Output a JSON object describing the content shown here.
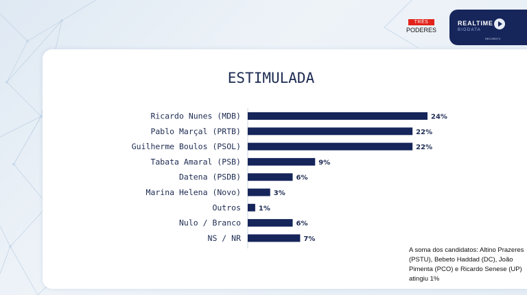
{
  "brand": {
    "tres_top": "TRÊS",
    "tres_bottom": "PODERES",
    "realtime_line1": "REALTIME",
    "realtime_line2": "BIGDATA",
    "realtime_line3": "RECORDTV"
  },
  "colors": {
    "bar": "#16255a",
    "panel_bg": "#ffffff",
    "brand_red": "#e2231a"
  },
  "chart_data": {
    "type": "bar",
    "orientation": "horizontal",
    "title": "ESTIMULADA",
    "categories": [
      "Ricardo Nunes (MDB)",
      "Pablo Marçal (PRTB)",
      "Guilherme Boulos (PSOL)",
      "Tabata Amaral (PSB)",
      "Datena (PSDB)",
      "Marina Helena (Novo)",
      "Outros",
      "Nulo / Branco",
      "NS / NR"
    ],
    "values": [
      24,
      22,
      22,
      9,
      6,
      3,
      1,
      6,
      7
    ],
    "value_labels": [
      "24%",
      "22%",
      "22%",
      "9%",
      "6%",
      "3%",
      "1%",
      "6%",
      "7%"
    ],
    "xlim": [
      0,
      24
    ],
    "grid": false
  },
  "footnote": "A soma dos candidatos: Altino Prazeres (PSTU), Bebeto Haddad (DC), João Pimenta (PCO) e Ricardo Senese (UP) atingiu 1%"
}
